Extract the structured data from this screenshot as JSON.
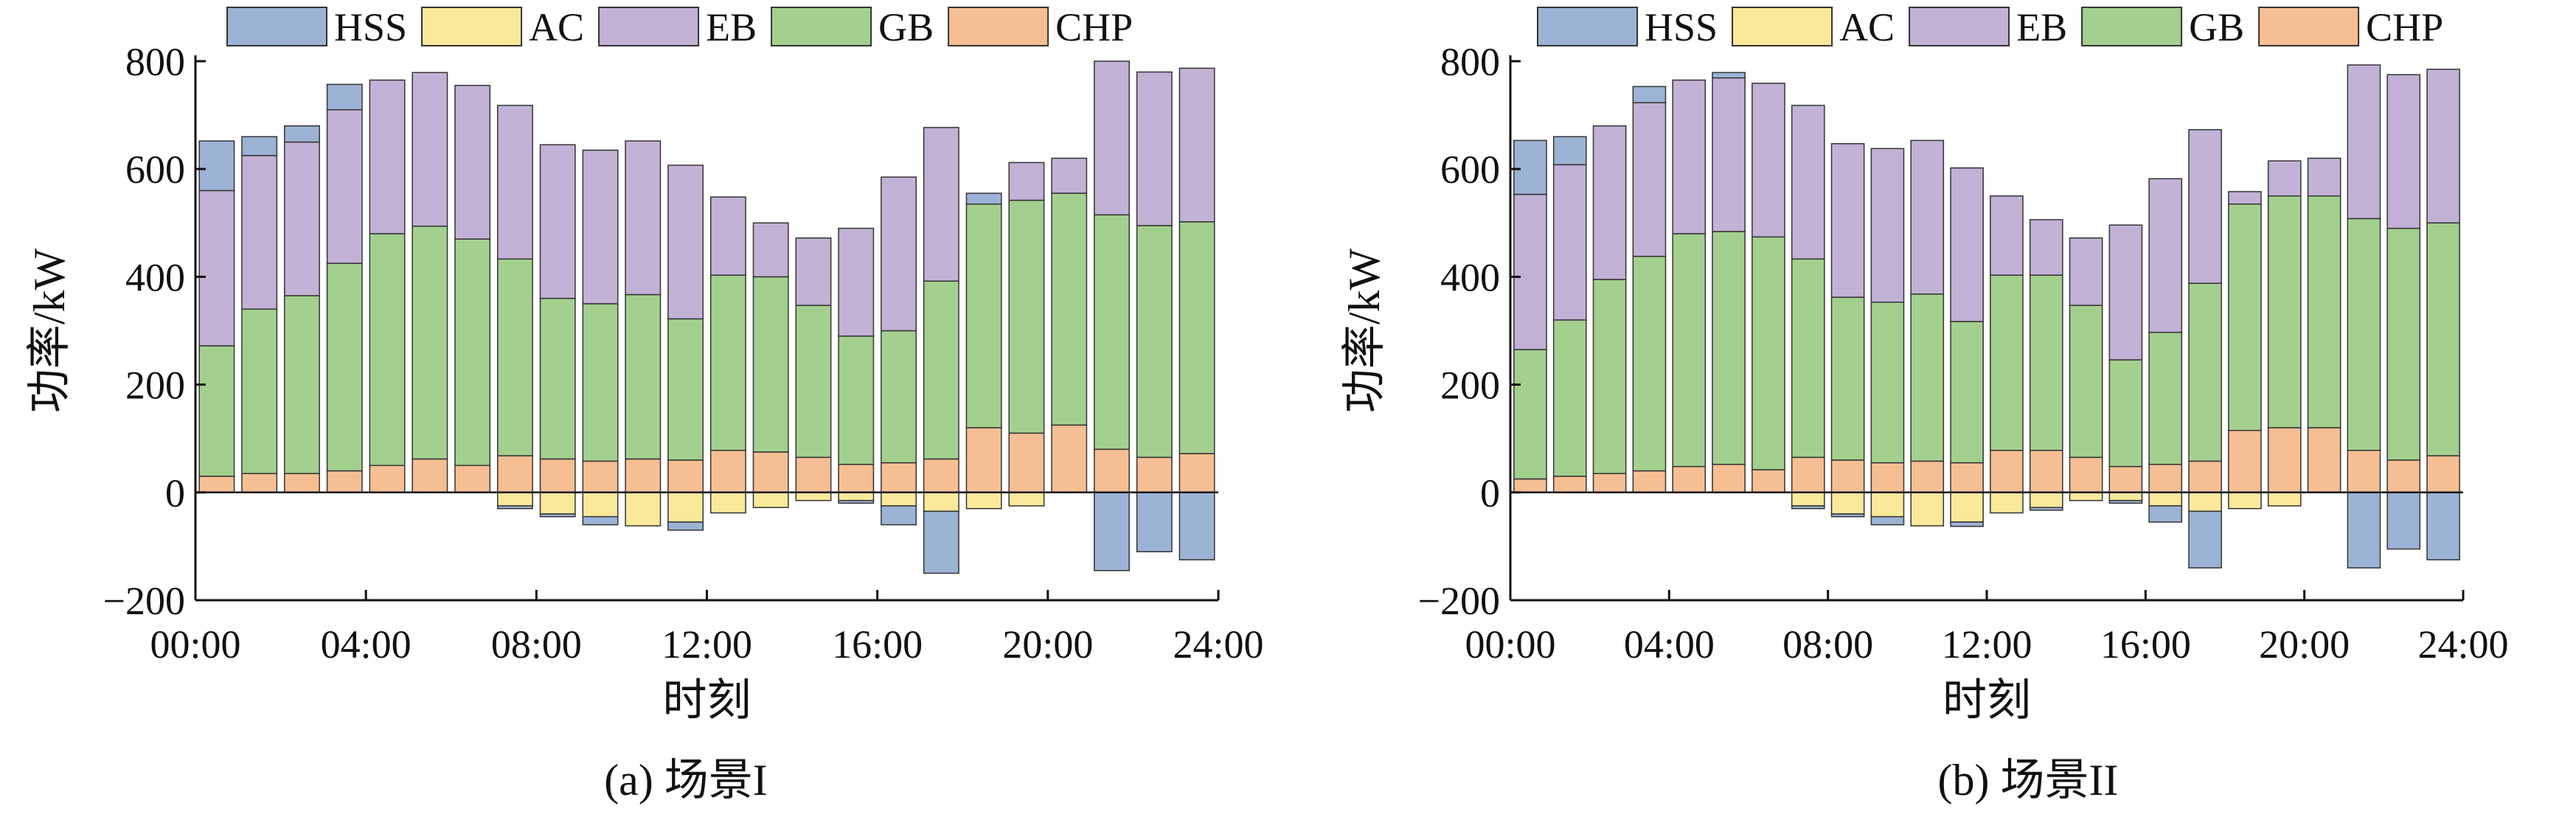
{
  "colors": {
    "HSS": "#9db3d6",
    "AC": "#fbe99a",
    "EB": "#c2b2d6",
    "GB": "#a4d08f",
    "CHP": "#f6bf93"
  },
  "chart_data": [
    {
      "type": "bar",
      "stacked": true,
      "caption": "(a) 场景I",
      "xlabel": "时刻",
      "ylabel": "功率/kW",
      "ylim": [
        -200,
        800
      ],
      "yticks": [
        "−200",
        "0",
        "200",
        "400",
        "600",
        "800"
      ],
      "xticks": [
        "00:00",
        "04:00",
        "08:00",
        "12:00",
        "16:00",
        "20:00",
        "24:00"
      ],
      "legend": [
        "HSS",
        "AC",
        "EB",
        "GB",
        "CHP"
      ],
      "hours": [
        1,
        2,
        3,
        4,
        5,
        6,
        7,
        8,
        9,
        10,
        11,
        12,
        13,
        14,
        15,
        16,
        17,
        18,
        19,
        20,
        21,
        22,
        23,
        24
      ],
      "series": [
        {
          "name": "CHP",
          "values": [
            30,
            35,
            35,
            40,
            50,
            62,
            50,
            68,
            62,
            58,
            62,
            60,
            78,
            75,
            65,
            52,
            55,
            62,
            120,
            110,
            125,
            80,
            65,
            72
          ]
        },
        {
          "name": "GB",
          "values": [
            242,
            305,
            330,
            385,
            430,
            432,
            420,
            365,
            298,
            292,
            305,
            262,
            325,
            325,
            282,
            238,
            245,
            330,
            415,
            432,
            430,
            435,
            430,
            430
          ]
        },
        {
          "name": "EB",
          "values": [
            288,
            285,
            285,
            285,
            285,
            285,
            285,
            285,
            285,
            285,
            285,
            285,
            145,
            100,
            125,
            200,
            285,
            285,
            0,
            70,
            65,
            285,
            285,
            285
          ]
        },
        {
          "name": "HSS",
          "values": [
            92,
            35,
            30,
            47,
            0,
            0,
            0,
            0,
            0,
            0,
            0,
            0,
            0,
            0,
            0,
            0,
            0,
            0,
            20,
            0,
            0,
            0,
            0,
            0
          ]
        },
        {
          "name": "AC",
          "values": [
            0,
            0,
            0,
            0,
            0,
            0,
            0,
            -25,
            -40,
            -45,
            -62,
            -55,
            -38,
            -28,
            -15,
            -15,
            -25,
            -35,
            -30,
            -25,
            0,
            0,
            0,
            0
          ]
        },
        {
          "name": "HSS_neg",
          "values": [
            0,
            0,
            0,
            0,
            0,
            0,
            0,
            -5,
            -5,
            -15,
            0,
            -15,
            0,
            0,
            0,
            -5,
            -35,
            -115,
            0,
            0,
            0,
            -145,
            -110,
            -125
          ]
        }
      ]
    },
    {
      "type": "bar",
      "stacked": true,
      "caption": "(b) 场景II",
      "xlabel": "时刻",
      "ylabel": "功率/kW",
      "ylim": [
        -200,
        800
      ],
      "yticks": [
        "−200",
        "0",
        "200",
        "400",
        "600",
        "800"
      ],
      "xticks": [
        "00:00",
        "04:00",
        "08:00",
        "12:00",
        "16:00",
        "20:00",
        "24:00"
      ],
      "legend": [
        "HSS",
        "AC",
        "EB",
        "GB",
        "CHP"
      ],
      "hours": [
        1,
        2,
        3,
        4,
        5,
        6,
        7,
        8,
        9,
        10,
        11,
        12,
        13,
        14,
        15,
        16,
        17,
        18,
        19,
        20,
        21,
        22,
        23,
        24
      ],
      "series": [
        {
          "name": "CHP",
          "values": [
            25,
            30,
            35,
            40,
            48,
            52,
            42,
            65,
            60,
            55,
            58,
            55,
            78,
            78,
            65,
            48,
            52,
            58,
            115,
            120,
            120,
            78,
            60,
            68
          ]
        },
        {
          "name": "GB",
          "values": [
            240,
            290,
            360,
            398,
            432,
            432,
            432,
            368,
            302,
            298,
            310,
            262,
            325,
            325,
            282,
            198,
            245,
            330,
            420,
            430,
            430,
            430,
            430,
            432
          ]
        },
        {
          "name": "EB",
          "values": [
            288,
            288,
            285,
            285,
            285,
            285,
            285,
            285,
            285,
            285,
            285,
            285,
            147,
            103,
            125,
            250,
            285,
            285,
            23,
            65,
            70,
            285,
            285,
            285
          ]
        },
        {
          "name": "HSS",
          "values": [
            100,
            52,
            0,
            30,
            0,
            10,
            0,
            0,
            0,
            0,
            0,
            0,
            0,
            0,
            0,
            0,
            0,
            0,
            0,
            0,
            0,
            0,
            0,
            0
          ]
        },
        {
          "name": "AC",
          "values": [
            0,
            0,
            0,
            0,
            0,
            0,
            0,
            -25,
            -40,
            -45,
            -62,
            -55,
            -38,
            -28,
            -15,
            -15,
            -25,
            -35,
            -30,
            -25,
            0,
            0,
            0,
            0
          ]
        },
        {
          "name": "HSS_neg",
          "values": [
            0,
            0,
            0,
            0,
            0,
            0,
            0,
            -5,
            -5,
            -15,
            0,
            -8,
            0,
            -5,
            0,
            -5,
            -30,
            -105,
            0,
            0,
            0,
            -140,
            -105,
            -125
          ]
        }
      ]
    }
  ]
}
